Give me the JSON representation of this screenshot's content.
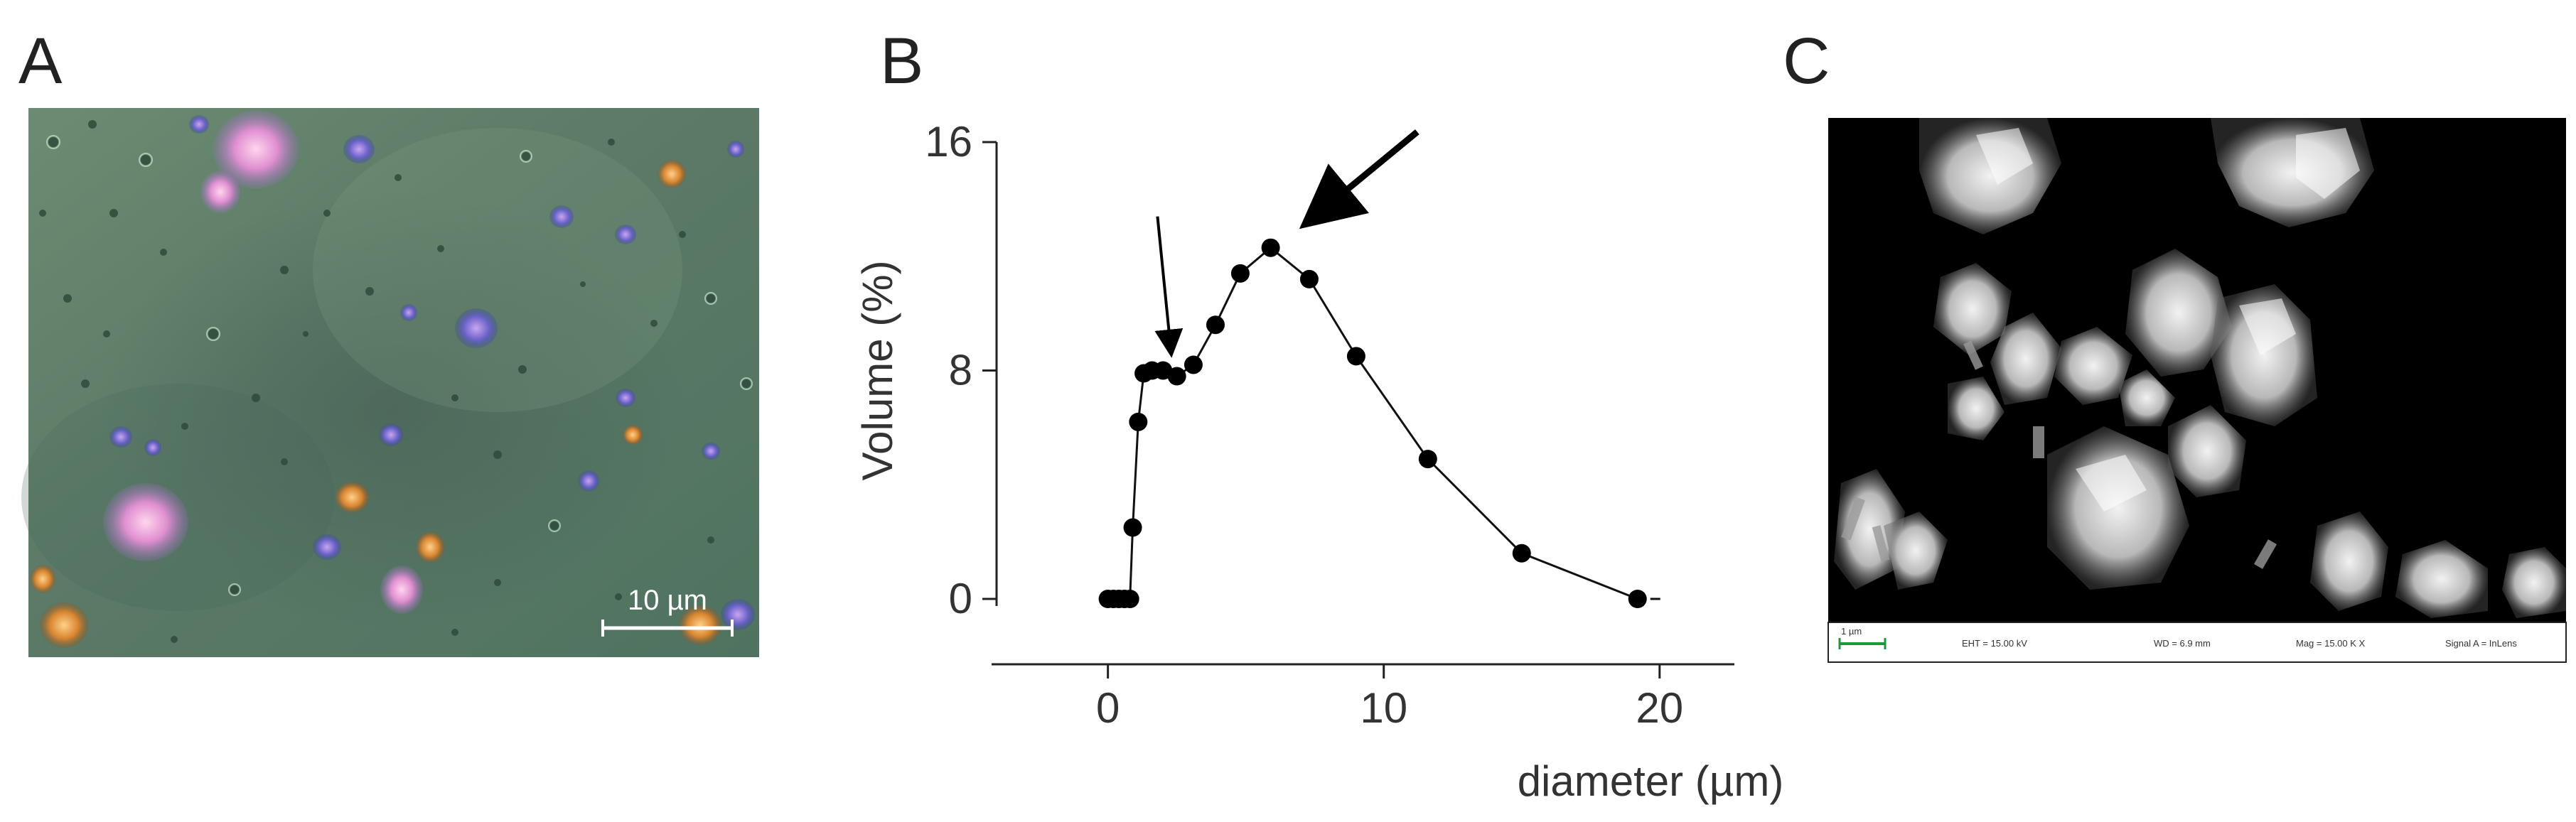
{
  "figure": {
    "panel_a": {
      "letter": "A",
      "scale_bar_label": "10 µm"
    },
    "panel_b": {
      "letter": "B"
    },
    "panel_c": {
      "letter": "C",
      "footer": {
        "scale_label": "1 µm",
        "eht": "EHT = 15.00 kV",
        "wd": "WD = 6.9 mm",
        "mag": "Mag = 15.00 K X",
        "signal": "Signal A = InLens"
      }
    }
  },
  "chart_data": {
    "type": "line",
    "xlabel": "diameter (µm)",
    "ylabel": "Volume (%)",
    "xlim": [
      -4.5,
      21.5
    ],
    "ylim": [
      0,
      16
    ],
    "xticks": [
      0,
      10,
      20
    ],
    "yticks": [
      0,
      8,
      16
    ],
    "grid": false,
    "x": [
      0.0,
      0.2,
      0.4,
      0.6,
      0.8,
      0.9,
      1.1,
      1.3,
      1.6,
      2.0,
      2.5,
      3.1,
      3.9,
      4.8,
      5.9,
      7.3,
      9.0,
      11.6,
      15.0,
      19.2
    ],
    "y": [
      0.0,
      0.0,
      0.0,
      0.0,
      0.0,
      2.5,
      6.2,
      7.9,
      8.0,
      8.0,
      7.8,
      8.2,
      9.6,
      11.4,
      12.3,
      11.2,
      8.5,
      4.9,
      1.6,
      0.0
    ],
    "annotations": [
      {
        "type": "arrow",
        "label": "",
        "target_x": 1.1,
        "target_y": 6.2
      },
      {
        "type": "arrow",
        "label": "",
        "target_x": 5.9,
        "target_y": 12.3
      }
    ]
  }
}
